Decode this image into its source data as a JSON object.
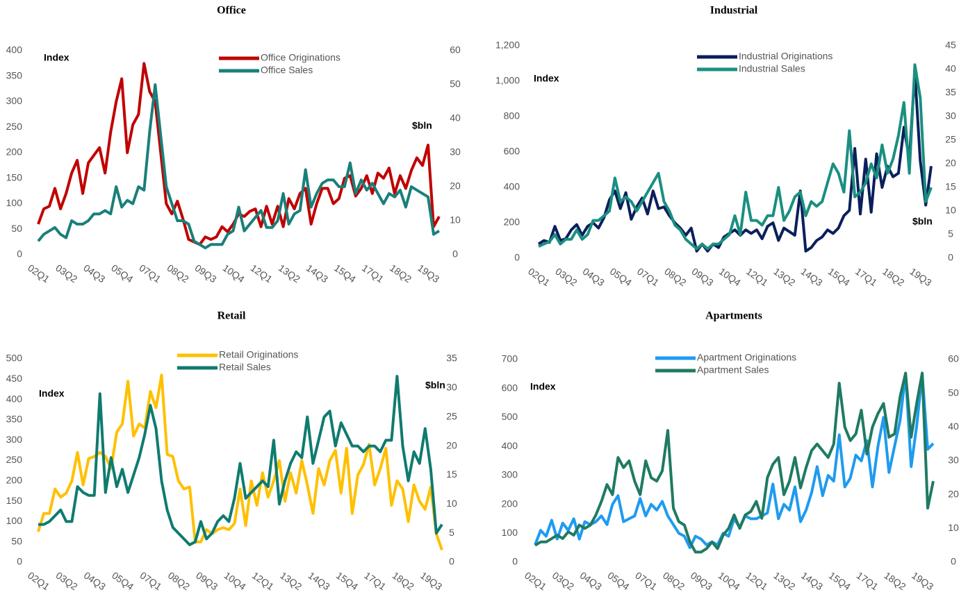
{
  "chart_data": [
    {
      "type": "line",
      "title": "Office",
      "y_label": "Index",
      "y2_label": "$bln",
      "categories": [
        "02Q1",
        null,
        null,
        null,
        null,
        "03Q2",
        null,
        null,
        null,
        null,
        "04Q3",
        null,
        null,
        null,
        null,
        "05Q4",
        null,
        null,
        null,
        null,
        "07Q1",
        null,
        null,
        null,
        null,
        "08Q2",
        null,
        null,
        null,
        null,
        "09Q3",
        null,
        null,
        null,
        null,
        "10Q4",
        null,
        null,
        null,
        null,
        "12Q1",
        null,
        null,
        null,
        null,
        "13Q2",
        null,
        null,
        null,
        null,
        "14Q3",
        null,
        null,
        null,
        null,
        "15Q4",
        null,
        null,
        null,
        null,
        "17Q1",
        null,
        null,
        null,
        null,
        "18Q2",
        null,
        null,
        null,
        null,
        "19Q3",
        null,
        null
      ],
      "series": [
        {
          "name": "Office Originations",
          "color": "#c00000",
          "values": [
            60,
            90,
            95,
            130,
            90,
            120,
            160,
            185,
            120,
            180,
            195,
            210,
            160,
            240,
            300,
            345,
            200,
            255,
            275,
            375,
            320,
            300,
            200,
            100,
            80,
            105,
            70,
            30,
            25,
            20,
            35,
            30,
            35,
            55,
            45,
            60,
            80,
            75,
            85,
            90,
            55,
            95,
            60,
            95,
            55,
            110,
            90,
            120,
            130,
            60,
            100,
            130,
            130,
            100,
            110,
            150,
            155,
            115,
            130,
            155,
            120,
            160,
            150,
            170,
            120,
            155,
            130,
            165,
            190,
            175,
            215,
            55,
            75
          ]
        },
        {
          "name": "Office Sales",
          "color": "#1a7f7a",
          "axis": "y2",
          "values": [
            4,
            6,
            7,
            8,
            6,
            5,
            10,
            9,
            9,
            10,
            12,
            12,
            13,
            12,
            20,
            14,
            16,
            15,
            20,
            19,
            36,
            50,
            35,
            20,
            15,
            10,
            10,
            9,
            4,
            3,
            2,
            3,
            3,
            3,
            6,
            7,
            14,
            7,
            9,
            11,
            13,
            8,
            8,
            10,
            18,
            9,
            12,
            13,
            25,
            14,
            18,
            21,
            22,
            22,
            20,
            20,
            27,
            18,
            22,
            19,
            21,
            18,
            15,
            18,
            17,
            19,
            14,
            20,
            19,
            18,
            17,
            6,
            7
          ]
        }
      ],
      "ylim": [
        0,
        400
      ],
      "yticks": [
        0,
        50,
        100,
        150,
        200,
        250,
        300,
        350,
        400
      ],
      "y2lim": [
        0,
        60
      ],
      "y2ticks": [
        0,
        10,
        20,
        30,
        40,
        50,
        60
      ]
    },
    {
      "type": "line",
      "title": "Industrial",
      "y_label": "Index",
      "y2_label": "$bln",
      "categories": [
        "02Q1",
        null,
        null,
        null,
        null,
        "03Q2",
        null,
        null,
        null,
        null,
        "04Q3",
        null,
        null,
        null,
        null,
        "05Q4",
        null,
        null,
        null,
        null,
        "07Q1",
        null,
        null,
        null,
        null,
        "08Q2",
        null,
        null,
        null,
        null,
        "09Q3",
        null,
        null,
        null,
        null,
        "10Q4",
        null,
        null,
        null,
        null,
        "12Q1",
        null,
        null,
        null,
        null,
        "13Q2",
        null,
        null,
        null,
        null,
        "14Q3",
        null,
        null,
        null,
        null,
        "15Q4",
        null,
        null,
        null,
        null,
        "17Q1",
        null,
        null,
        null,
        null,
        "18Q2",
        null,
        null,
        null,
        null,
        "19Q3",
        null,
        null
      ],
      "series": [
        {
          "name": "Industrial Originations",
          "color": "#0b1f5c",
          "values": [
            80,
            100,
            90,
            180,
            100,
            110,
            160,
            190,
            130,
            180,
            200,
            170,
            230,
            330,
            380,
            280,
            370,
            220,
            290,
            340,
            250,
            380,
            280,
            290,
            240,
            200,
            170,
            130,
            170,
            40,
            80,
            40,
            80,
            60,
            120,
            140,
            160,
            130,
            160,
            140,
            160,
            110,
            180,
            200,
            100,
            170,
            150,
            130,
            380,
            40,
            60,
            100,
            120,
            160,
            140,
            170,
            240,
            270,
            620,
            250,
            560,
            260,
            590,
            400,
            520,
            460,
            480,
            740,
            560,
            1050,
            550,
            300,
            520
          ]
        },
        {
          "name": "Industrial Sales",
          "color": "#1a8f80",
          "axis": "y2",
          "values": [
            2.5,
            3,
            3.5,
            5,
            3,
            4,
            4,
            6,
            4,
            5,
            8,
            8,
            9,
            10,
            17,
            12,
            13,
            12,
            10,
            12,
            14,
            16,
            18,
            12,
            10,
            7,
            6,
            4,
            3,
            2,
            3,
            2,
            3,
            3,
            4,
            5,
            9,
            5,
            14,
            8,
            8,
            7,
            9,
            9,
            15,
            8,
            10,
            13,
            14,
            9,
            12,
            11,
            12,
            16,
            20,
            18,
            14,
            27,
            13,
            14,
            16,
            20,
            17,
            24,
            18,
            21,
            26,
            33,
            18,
            41,
            34,
            12,
            15
          ]
        }
      ],
      "ylim": [
        0,
        1200
      ],
      "yticks": [
        0,
        200,
        400,
        600,
        800,
        {
          "value": 1000,
          "label": "1,000"
        },
        {
          "value": 1200,
          "label": "1,200"
        }
      ],
      "y2lim": [
        0,
        45
      ],
      "y2ticks": [
        0,
        5,
        10,
        15,
        20,
        25,
        30,
        35,
        40,
        45
      ]
    },
    {
      "type": "line",
      "title": "Retail",
      "y_label": "Index",
      "y2_label": "$bln",
      "categories": [
        "02Q1",
        null,
        null,
        null,
        null,
        "03Q2",
        null,
        null,
        null,
        null,
        "04Q3",
        null,
        null,
        null,
        null,
        "05Q4",
        null,
        null,
        null,
        null,
        "07Q1",
        null,
        null,
        null,
        null,
        "08Q2",
        null,
        null,
        null,
        null,
        "09Q3",
        null,
        null,
        null,
        null,
        "10Q4",
        null,
        null,
        null,
        null,
        "12Q1",
        null,
        null,
        null,
        null,
        "13Q2",
        null,
        null,
        null,
        null,
        "14Q3",
        null,
        null,
        null,
        null,
        "15Q4",
        null,
        null,
        null,
        null,
        "17Q1",
        null,
        null,
        null,
        null,
        "18Q2",
        null,
        null,
        null,
        null,
        "19Q3",
        null,
        null
      ],
      "series": [
        {
          "name": "Retail Originations",
          "color": "#ffc000",
          "values": [
            75,
            120,
            120,
            180,
            160,
            170,
            200,
            270,
            190,
            255,
            260,
            270,
            260,
            230,
            320,
            340,
            445,
            310,
            340,
            330,
            420,
            380,
            460,
            265,
            260,
            200,
            180,
            185,
            50,
            50,
            80,
            70,
            80,
            85,
            80,
            95,
            180,
            90,
            200,
            140,
            220,
            160,
            200,
            250,
            150,
            220,
            170,
            250,
            190,
            120,
            230,
            190,
            250,
            275,
            170,
            280,
            120,
            215,
            240,
            290,
            190,
            230,
            280,
            140,
            200,
            180,
            100,
            190,
            150,
            130,
            185,
            70,
            30
          ]
        },
        {
          "name": "Retail Sales",
          "color": "#0f7b6f",
          "axis": "y2",
          "values": [
            6.5,
            6.5,
            7,
            8,
            9,
            7,
            7,
            13,
            12,
            11.5,
            11.5,
            29,
            12,
            18,
            13,
            16,
            12,
            15,
            18,
            22,
            27,
            23,
            14,
            9,
            6,
            5,
            4,
            3,
            3.5,
            7,
            4,
            5,
            7,
            8,
            7,
            11,
            17,
            11,
            12,
            13,
            14,
            13,
            21,
            10,
            14,
            17,
            19,
            18,
            25,
            17,
            21,
            25,
            26,
            20,
            24,
            22,
            20,
            20,
            19,
            20,
            20,
            19,
            21,
            21,
            32,
            20,
            14,
            19,
            17,
            23,
            16,
            5,
            6.5
          ]
        }
      ],
      "ylim": [
        0,
        500
      ],
      "yticks": [
        0,
        50,
        100,
        150,
        200,
        250,
        300,
        350,
        400,
        450,
        500
      ],
      "y2lim": [
        0,
        35
      ],
      "y2ticks": [
        0,
        5,
        10,
        15,
        20,
        25,
        30,
        35
      ]
    },
    {
      "type": "line",
      "title": "Apartments",
      "y_label": "Index",
      "categories": [
        "02Q1",
        null,
        null,
        null,
        null,
        "03Q2",
        null,
        null,
        null,
        null,
        "04Q3",
        null,
        null,
        null,
        null,
        "05Q4",
        null,
        null,
        null,
        null,
        "07Q1",
        null,
        null,
        null,
        null,
        "08Q2",
        null,
        null,
        null,
        null,
        "09Q3",
        null,
        null,
        null,
        null,
        "10Q4",
        null,
        null,
        null,
        null,
        "12Q1",
        null,
        null,
        null,
        null,
        "13Q2",
        null,
        null,
        null,
        null,
        "14Q3",
        null,
        null,
        null,
        null,
        "15Q4",
        null,
        null,
        null,
        null,
        "17Q1",
        null,
        null,
        null,
        null,
        "18Q2",
        null,
        null,
        null,
        null,
        "19Q3",
        null,
        null
      ],
      "series": [
        {
          "name": "Apartment Originations",
          "color": "#1e9bf0",
          "values": [
            60,
            110,
            90,
            145,
            80,
            135,
            110,
            150,
            80,
            140,
            130,
            140,
            160,
            130,
            200,
            230,
            140,
            150,
            160,
            220,
            160,
            200,
            180,
            210,
            160,
            130,
            100,
            90,
            50,
            90,
            80,
            60,
            70,
            60,
            100,
            90,
            150,
            120,
            160,
            150,
            150,
            160,
            170,
            270,
            150,
            200,
            180,
            260,
            140,
            180,
            240,
            330,
            230,
            300,
            280,
            440,
            260,
            290,
            370,
            350,
            420,
            260,
            400,
            500,
            310,
            400,
            490,
            650,
            330,
            470,
            650,
            390,
            410
          ]
        },
        {
          "name": "Apartment Sales",
          "color": "#1f7a63",
          "axis": "y2",
          "values": [
            5,
            6,
            6,
            7,
            8,
            7,
            9,
            8,
            11,
            10,
            11,
            14,
            18,
            23,
            20,
            31,
            28,
            30,
            24,
            20,
            30,
            25,
            24,
            27,
            39,
            16,
            12,
            11,
            6,
            3,
            3,
            4,
            6,
            4,
            8,
            10,
            14,
            10,
            14,
            15,
            18,
            13,
            25,
            29,
            31,
            20,
            24,
            31,
            22,
            28,
            33,
            35,
            33,
            31,
            35,
            53,
            40,
            36,
            38,
            45,
            32,
            40,
            44,
            47,
            37,
            38,
            49,
            56,
            37,
            47,
            56,
            16,
            24
          ]
        }
      ],
      "ylim": [
        0,
        700
      ],
      "yticks": [
        0,
        100,
        200,
        300,
        400,
        500,
        600,
        700
      ],
      "y2lim": [
        0,
        60
      ],
      "y2ticks": [
        0,
        10,
        20,
        30,
        40,
        50,
        60
      ]
    }
  ]
}
